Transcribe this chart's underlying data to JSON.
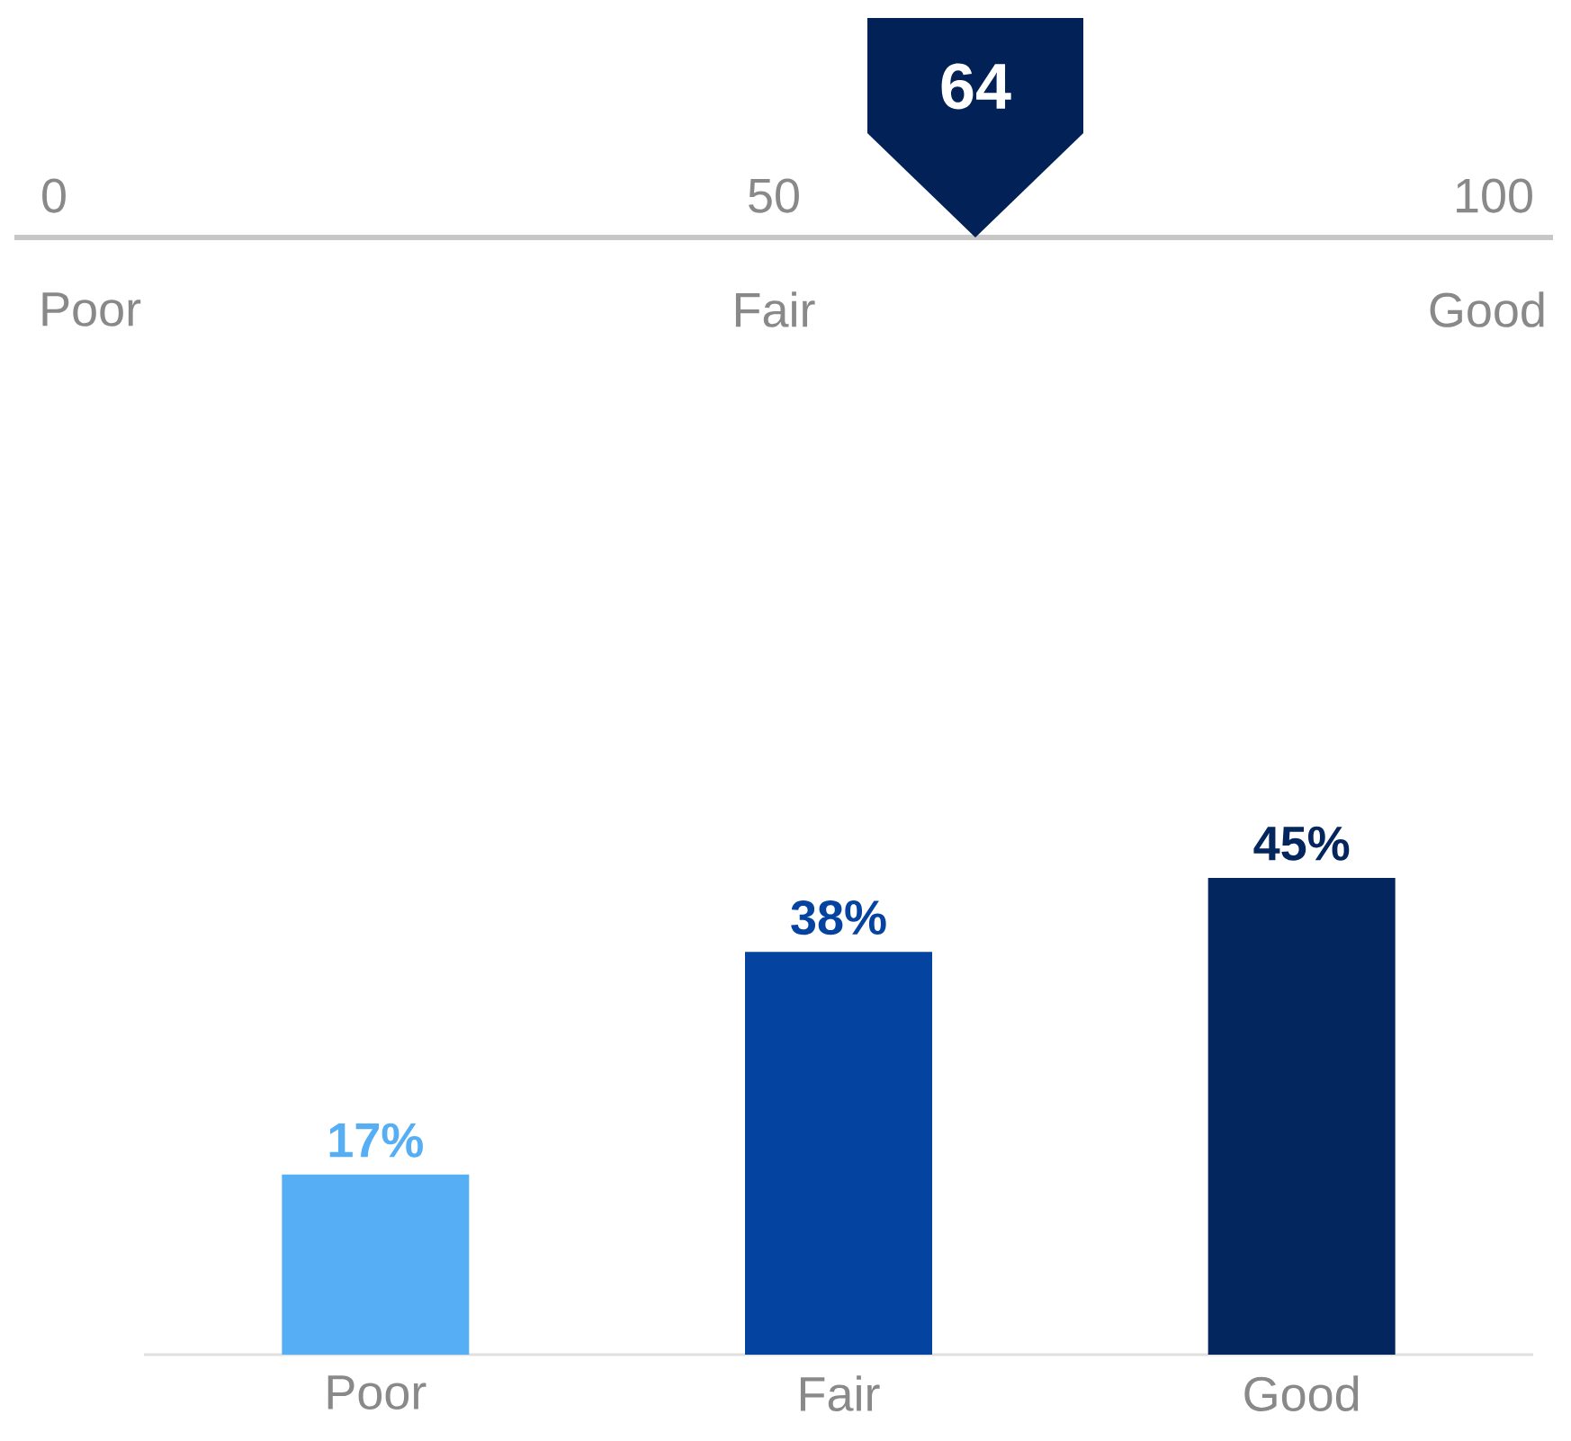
{
  "chart_data": [
    {
      "type": "other",
      "values": [
        64
      ],
      "data_labels": true,
      "color": "#022257",
      "annotations": [
        "0",
        "50",
        "100",
        "Poor",
        "Fair",
        "Good"
      ]
    },
    {
      "type": "bar",
      "categories": [
        "Poor",
        "Fair",
        "Good"
      ],
      "values": [
        17,
        38,
        45
      ],
      "colors": [
        "#56aef5",
        "#0543a0",
        "#03265e"
      ],
      "value_labels": [
        "17%",
        "38%",
        "45%"
      ]
    }
  ]
}
